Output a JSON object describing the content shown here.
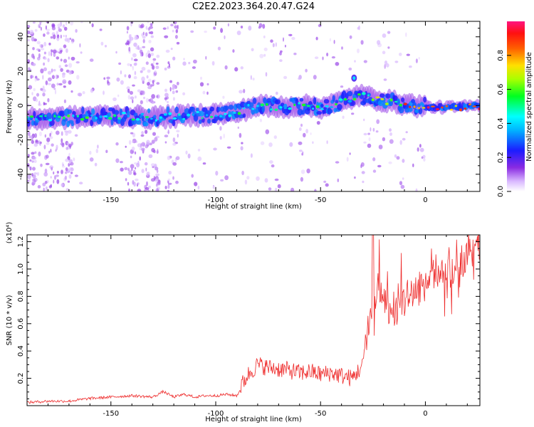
{
  "title": "C2E2.2023.364.20.47.G24",
  "chart_data": [
    {
      "type": "heatmap",
      "xlabel": "Height of straight line (km)",
      "ylabel": "Frequency (Hz)",
      "xlim": [
        -190,
        26
      ],
      "ylim": [
        -50,
        49
      ],
      "xticks": [
        -150,
        -100,
        -50,
        0
      ],
      "yticks": [
        -40,
        -20,
        0,
        20,
        40
      ],
      "colorbar": {
        "label": "Normalized spectral amplitude",
        "range": [
          0,
          1
        ],
        "ticks": [
          "0.0",
          "0.2",
          "0.4",
          "0.6",
          "0.8"
        ],
        "colormap": "rainbow (white → violet → blue → cyan → green → yellow → orange → red → pink)"
      },
      "ridge": {
        "description": "Main spectral ridge: frequency vs height",
        "x": [
          -190,
          -170,
          -150,
          -130,
          -115,
          -100,
          -90,
          -80,
          -70,
          -60,
          -50,
          -40,
          -32,
          -25,
          -15,
          -5,
          5,
          15,
          25
        ],
        "y": [
          -8,
          -7,
          -6,
          -7,
          -6,
          -5,
          -4,
          0,
          -1,
          0,
          -1,
          2,
          6,
          4,
          2,
          0,
          -1,
          -1,
          0
        ],
        "peak_amplitude_x": [
          -5,
          25
        ]
      }
    },
    {
      "type": "line",
      "xlabel": "Height of straight line (km)",
      "ylabel": "SNR (10 * v/v)",
      "yscale_label": "(x10⁴)",
      "series_color": "#ee2b2b",
      "xlim": [
        -190,
        26
      ],
      "ylim": [
        0,
        1.25
      ],
      "xticks": [
        -150,
        -100,
        -50,
        0
      ],
      "yticks": [
        "0.2",
        "0.4",
        "0.6",
        "0.8",
        "1.0",
        "1.2"
      ],
      "series": [
        {
          "x": [
            -190,
            -180,
            -170,
            -160,
            -150,
            -140,
            -130,
            -125,
            -120,
            -115,
            -110,
            -105,
            -100,
            -95,
            -90,
            -88,
            -85,
            -80,
            -75,
            -70,
            -65,
            -60,
            -55,
            -50,
            -45,
            -40,
            -35,
            -30,
            -28,
            -25,
            -22,
            -20,
            -15,
            -10,
            -5,
            0,
            5,
            10,
            15,
            20,
            26
          ],
          "y": [
            0.02,
            0.03,
            0.03,
            0.05,
            0.06,
            0.07,
            0.06,
            0.1,
            0.06,
            0.08,
            0.06,
            0.07,
            0.07,
            0.08,
            0.07,
            0.12,
            0.2,
            0.28,
            0.26,
            0.25,
            0.24,
            0.22,
            0.23,
            0.21,
            0.22,
            0.2,
            0.18,
            0.27,
            0.52,
            0.65,
            0.85,
            0.7,
            0.62,
            0.75,
            0.8,
            0.85,
            0.95,
            0.92,
            1.0,
            1.05,
            1.12
          ]
        }
      ]
    }
  ]
}
